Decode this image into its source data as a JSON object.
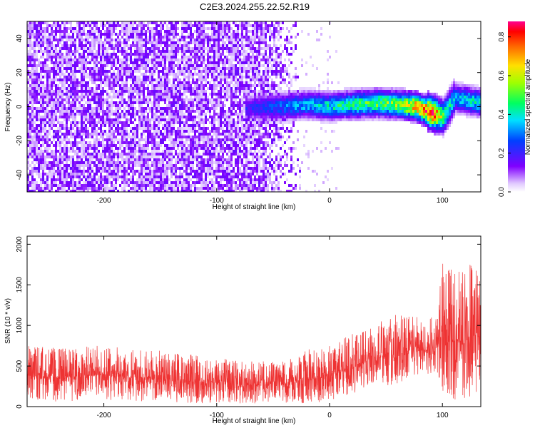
{
  "title": "C2E3.2024.255.22.52.R19",
  "colors": {
    "snr_line": "#ee3333",
    "background": "#ffffff",
    "axis": "#000000"
  },
  "chart_data": [
    {
      "type": "heatmap",
      "xlabel": "Height of straight line (km)",
      "ylabel": "Frequency (Hz)",
      "xlim": [
        -268,
        134
      ],
      "ylim": [
        -50,
        50
      ],
      "xticks": [
        -200,
        -100,
        0,
        100
      ],
      "xtick_labels": [
        "-200",
        "-100",
        "0",
        "100"
      ],
      "yticks": [
        -40,
        -20,
        0,
        20,
        40
      ],
      "ytick_labels": [
        "-40",
        "-20",
        "0",
        "20",
        "40"
      ],
      "colorbar": {
        "label": "Normalized spectral amplitude",
        "range": [
          0.0,
          0.88
        ],
        "ticks": [
          0.0,
          0.2,
          0.4,
          0.6,
          0.8
        ],
        "tick_labels": [
          "0.0",
          "0.2",
          "0.4",
          "0.6",
          "0.8"
        ],
        "colormap": "rainbow"
      },
      "description_points": {
        "noise_region_x": [
          -268,
          -25
        ],
        "signal_band": [
          {
            "x": -70,
            "freq": 0,
            "amp": 0.2
          },
          {
            "x": -40,
            "freq": 1,
            "amp": 0.3
          },
          {
            "x": -20,
            "freq": 2,
            "amp": 0.35
          },
          {
            "x": 0,
            "freq": 1,
            "amp": 0.4
          },
          {
            "x": 20,
            "freq": 2,
            "amp": 0.45
          },
          {
            "x": 40,
            "freq": 3,
            "amp": 0.5
          },
          {
            "x": 60,
            "freq": 2,
            "amp": 0.55
          },
          {
            "x": 75,
            "freq": 1,
            "amp": 0.7
          },
          {
            "x": 90,
            "freq": -3,
            "amp": 0.85
          },
          {
            "x": 100,
            "freq": -5,
            "amp": 0.5
          },
          {
            "x": 110,
            "freq": 6,
            "amp": 0.35
          },
          {
            "x": 125,
            "freq": 4,
            "amp": 0.4
          },
          {
            "x": 134,
            "freq": 3,
            "amp": 0.4
          }
        ]
      }
    },
    {
      "type": "line",
      "xlabel": "Height of straight line (km)",
      "ylabel": "SNR (10 * v/v)",
      "xlim": [
        -268,
        134
      ],
      "ylim": [
        0,
        2100
      ],
      "xticks": [
        -200,
        -100,
        0,
        100
      ],
      "xtick_labels": [
        "-200",
        "-100",
        "0",
        "100"
      ],
      "yticks": [
        0,
        500,
        1000,
        1500,
        2000
      ],
      "ytick_labels": [
        "0",
        "500",
        "1000",
        "1500",
        "2000"
      ],
      "series": [
        {
          "color": "#ee3333",
          "envelope_x": [
            -268,
            -240,
            -200,
            -160,
            -120,
            -80,
            -40,
            -20,
            0,
            20,
            40,
            60,
            80,
            95,
            100,
            110,
            120,
            134
          ],
          "envelope_max": [
            780,
            720,
            760,
            700,
            650,
            560,
            560,
            700,
            760,
            900,
            1050,
            1150,
            1100,
            1100,
            1900,
            1700,
            1800,
            1800
          ],
          "envelope_min": [
            80,
            60,
            80,
            60,
            40,
            40,
            40,
            40,
            60,
            150,
            250,
            200,
            350,
            420,
            100,
            80,
            80,
            100
          ]
        }
      ]
    }
  ]
}
